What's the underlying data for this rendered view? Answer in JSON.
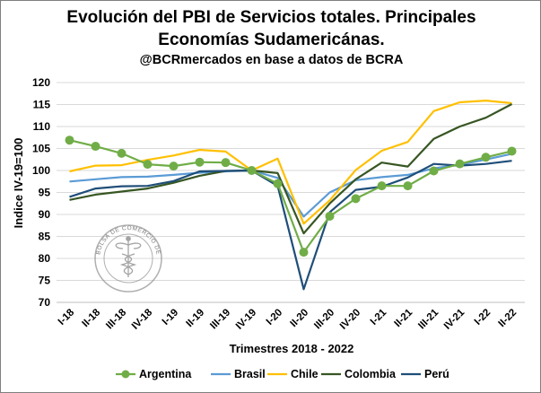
{
  "title_line1": "Evolución del PBI de Servicios totales. Principales",
  "title_line2": "Economías Sudamericánas.",
  "subtitle": "@BCRmercados en base a datos de BCRA",
  "watermark": "BOLSA DE COMERCIO DE ROSARIO",
  "chart_data": {
    "type": "line",
    "xlabel": "Trimestres 2018 - 2022",
    "ylabel": "Indice  IV-19=100",
    "ylim": [
      70,
      120
    ],
    "yticks": [
      70,
      75,
      80,
      85,
      90,
      95,
      100,
      105,
      110,
      115,
      120
    ],
    "grid": true,
    "legend_position": "bottom",
    "categories": [
      "I-18",
      "II-18",
      "III-18",
      "IV-18",
      "I-19",
      "II-19",
      "III-19",
      "IV-19",
      "I-20",
      "II-20",
      "III-20",
      "IV-20",
      "I-21",
      "II-21",
      "III-21",
      "IV-21",
      "I-22",
      "II-22"
    ],
    "series": [
      {
        "name": "Argentina",
        "color": "#70ad47",
        "markers": true,
        "values": [
          106.9,
          105.5,
          103.9,
          101.4,
          101.0,
          101.9,
          101.8,
          100.0,
          97.0,
          81.4,
          89.6,
          93.6,
          96.5,
          96.5,
          99.9,
          101.5,
          103.0,
          104.4
        ]
      },
      {
        "name": "Brasil",
        "color": "#5b9bd5",
        "markers": false,
        "values": [
          97.5,
          98.0,
          98.5,
          98.6,
          99.0,
          99.5,
          99.8,
          100.0,
          98.3,
          89.5,
          95.0,
          97.8,
          98.5,
          99.0,
          100.5,
          101.3,
          102.5,
          103.8
        ]
      },
      {
        "name": "Chile",
        "color": "#ffc000",
        "markers": false,
        "values": [
          99.8,
          101.1,
          101.2,
          102.4,
          103.4,
          104.7,
          104.3,
          100.0,
          102.7,
          87.9,
          93.2,
          100.1,
          104.5,
          106.5,
          113.5,
          115.5,
          115.9,
          115.3
        ]
      },
      {
        "name": "Colombia",
        "color": "#375623",
        "markers": false,
        "values": [
          93.3,
          94.5,
          95.2,
          95.9,
          97.2,
          98.8,
          99.9,
          100.0,
          99.4,
          85.7,
          92.5,
          98.0,
          101.8,
          100.9,
          107.2,
          110.0,
          112.0,
          115.1
        ]
      },
      {
        "name": "Perú",
        "color": "#1f4e79",
        "markers": false,
        "values": [
          94.0,
          95.9,
          96.4,
          96.5,
          97.6,
          99.8,
          99.9,
          100.0,
          96.5,
          73.0,
          90.5,
          95.6,
          96.3,
          98.4,
          101.5,
          101.1,
          101.5,
          102.2
        ]
      }
    ]
  }
}
